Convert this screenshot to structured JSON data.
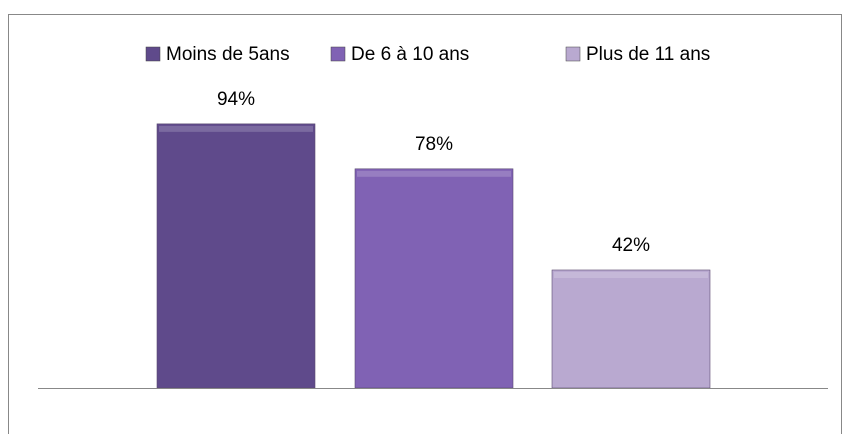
{
  "chart_data": {
    "type": "bar",
    "categories": [
      null
    ],
    "series": [
      {
        "name": "Moins de 5ans",
        "color": "#5f4a8b",
        "values": [
          94
        ],
        "value_labels": [
          "94%"
        ]
      },
      {
        "name": "De 6 à 10 ans",
        "color": "#8062b4",
        "values": [
          78
        ],
        "value_labels": [
          "78%"
        ]
      },
      {
        "name": "Plus de 11 ans",
        "color": "#b9a9d0",
        "values": [
          42
        ],
        "value_labels": [
          "42%"
        ]
      }
    ],
    "legend": "top"
  }
}
